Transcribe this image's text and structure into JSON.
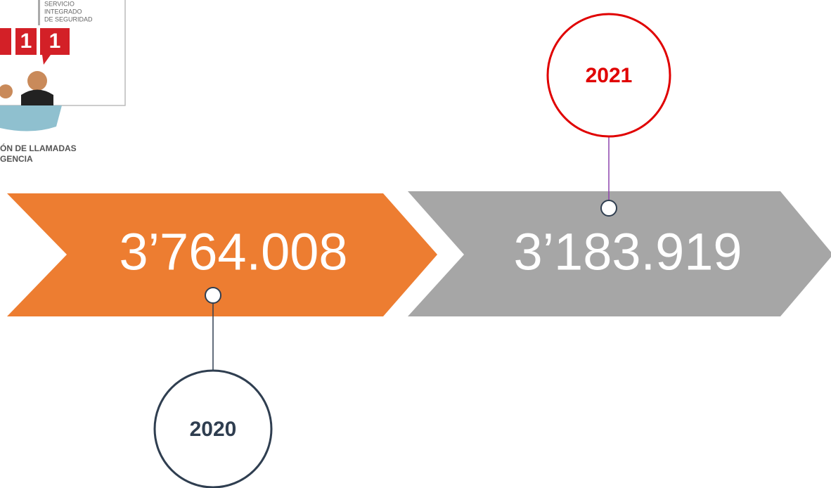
{
  "logo": {
    "lines": [
      "SERVICIO",
      "INTEGRADO",
      "DE SEGURIDAD"
    ],
    "digits": [
      "1",
      "1"
    ],
    "caption": [
      "ÓN DE LLAMADAS",
      "GENCIA"
    ]
  },
  "timeline": [
    {
      "year": "2020",
      "value": "3’764.008"
    },
    {
      "year": "2021",
      "value": "3’183.919"
    }
  ]
}
